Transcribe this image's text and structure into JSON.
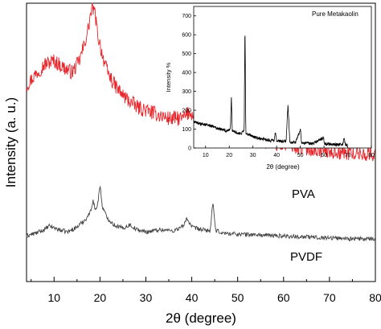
{
  "chart_data": [
    {
      "type": "line",
      "title": "",
      "xlabel": "2θ (degree)",
      "ylabel": "Intensity (a. u.)",
      "xlim": [
        4,
        80
      ],
      "x_ticks": [
        10,
        20,
        30,
        40,
        50,
        60,
        70,
        80
      ],
      "y_ticks_visible": false,
      "grid": false,
      "series_labels": [
        "PVA",
        "PVDF"
      ],
      "series": [
        {
          "name": "PVA",
          "color": "#e8262b",
          "x": [
            4,
            6,
            8,
            10,
            12,
            14,
            15.5,
            16.5,
            17.5,
            18.0,
            18.5,
            19.0,
            19.5,
            20.5,
            21.5,
            23,
            25,
            28,
            32,
            35,
            38,
            39.5,
            41,
            43,
            46,
            50,
            55,
            60,
            65,
            70,
            75,
            80
          ],
          "y": [
            0.53,
            0.6,
            0.66,
            0.68,
            0.64,
            0.61,
            0.68,
            0.77,
            0.88,
            0.97,
            1.0,
            0.95,
            0.84,
            0.72,
            0.62,
            0.54,
            0.47,
            0.4,
            0.36,
            0.33,
            0.33,
            0.37,
            0.34,
            0.28,
            0.24,
            0.22,
            0.19,
            0.17,
            0.15,
            0.13,
            0.12,
            0.11
          ]
        },
        {
          "name": "PVDF",
          "color": "#444444",
          "x": [
            4,
            6,
            8,
            9,
            11,
            13,
            15,
            17,
            18.0,
            18.5,
            19.0,
            19.5,
            20.0,
            20.5,
            21.5,
            23,
            25,
            26.5,
            28,
            30,
            33,
            36,
            38.3,
            38.8,
            40,
            42,
            44.0,
            44.6,
            45.2,
            47,
            52,
            58,
            65,
            72,
            80
          ],
          "y": [
            0.0,
            0.02,
            0.05,
            0.08,
            0.05,
            0.03,
            0.07,
            0.14,
            0.2,
            0.3,
            0.2,
            0.26,
            0.42,
            0.24,
            0.15,
            0.09,
            0.06,
            0.09,
            0.05,
            0.03,
            0.05,
            0.04,
            0.08,
            0.15,
            0.07,
            0.05,
            0.04,
            0.27,
            0.04,
            0.02,
            0.01,
            0.0,
            -0.01,
            -0.02,
            -0.03
          ]
        }
      ]
    },
    {
      "type": "line",
      "title": "Pure Metakaolin",
      "xlabel": "2θ (degree)",
      "ylabel": "Intensity %",
      "xlim": [
        5,
        80
      ],
      "ylim": [
        0,
        750
      ],
      "x_ticks": [
        10,
        20,
        30,
        40,
        50,
        60,
        70,
        80
      ],
      "y_ticks": [
        0,
        100,
        200,
        300,
        400,
        500,
        600,
        700
      ],
      "grid": false,
      "series": [
        {
          "name": "",
          "color": "#000000",
          "x": [
            5,
            8,
            11,
            14,
            17,
            19,
            20.5,
            20.9,
            21.3,
            23,
            25,
            26.3,
            26.65,
            27.0,
            30,
            35,
            39,
            39.5,
            40,
            44,
            44.8,
            45.6,
            48,
            50.1,
            50.5,
            51,
            55,
            59.8,
            60.2,
            65,
            68,
            68.5,
            69,
            70
          ],
          "y": [
            140,
            128,
            122,
            110,
            98,
            90,
            100,
            275,
            90,
            82,
            75,
            92,
            665,
            82,
            60,
            45,
            38,
            85,
            38,
            36,
            230,
            33,
            30,
            100,
            30,
            28,
            22,
            55,
            22,
            18,
            20,
            60,
            18,
            15
          ]
        }
      ]
    }
  ]
}
